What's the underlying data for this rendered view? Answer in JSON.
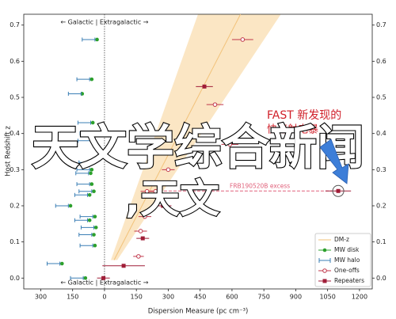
{
  "chart_data": {
    "type": "scatter",
    "xlabel": "Dispersion Measure (pc cm⁻³)",
    "ylabel": "Host Redshift z",
    "region_top": "← Galactic | Extragalactic →",
    "region_bottom": "← Galactic | Extragalactic →",
    "xlim": [
      -380,
      1260
    ],
    "ylim": [
      -0.03,
      0.73
    ],
    "xticks": [
      {
        "value": -300,
        "label": "300"
      },
      {
        "value": -150,
        "label": "150"
      },
      0,
      150,
      300,
      450,
      600,
      750,
      900,
      1050,
      1200
    ],
    "yticks": [
      {
        "value": 0,
        "label": "0.0"
      },
      0.1,
      0.2,
      0.3,
      0.4,
      0.5,
      0.6,
      0.7
    ],
    "band": {
      "y": [
        0.05,
        0.73
      ],
      "x_lower": [
        30,
        440
      ],
      "x_upper": [
        60,
        830
      ],
      "color": "#fbe6c4"
    },
    "series": [
      {
        "name": "DM-z",
        "kind": "line",
        "color": "#f2c27a",
        "x": [
          45,
          640
        ],
        "values": [
          0.05,
          0.73
        ]
      },
      {
        "name": "MW disk",
        "kind": "dot",
        "color": "#2ca02c",
        "x": [
          -35,
          -60,
          -105,
          -55,
          -45,
          -55,
          -50,
          -60,
          -65,
          -60,
          -50,
          -70,
          -160,
          -45,
          -70,
          -40,
          -50,
          -45,
          -200,
          -90
        ],
        "values": [
          0.66,
          0.55,
          0.51,
          0.43,
          0.4,
          0.38,
          0.32,
          0.3,
          0.29,
          0.26,
          0.24,
          0.23,
          0.2,
          0.17,
          0.16,
          0.14,
          0.12,
          0.09,
          0.04,
          0.0
        ]
      },
      {
        "name": "MW halo",
        "kind": "bar",
        "color": "#3b7fb5",
        "x": [
          -75,
          -100,
          -140,
          -95,
          -85,
          -95,
          -90,
          -100,
          -105,
          -100,
          -90,
          -110,
          -200,
          -85,
          -110,
          -80,
          -90,
          -85,
          -240,
          -130
        ],
        "values": [
          0.66,
          0.55,
          0.51,
          0.43,
          0.4,
          0.38,
          0.32,
          0.3,
          0.29,
          0.26,
          0.24,
          0.23,
          0.2,
          0.17,
          0.16,
          0.14,
          0.12,
          0.09,
          0.04,
          0.0
        ],
        "xerr": [
          30,
          30,
          30,
          30,
          30,
          30,
          30,
          30,
          30,
          30,
          30,
          30,
          30,
          30,
          30,
          30,
          30,
          30,
          30,
          30
        ]
      },
      {
        "name": "One-offs",
        "kind": "circle",
        "color": "#c0364a",
        "x": [
          650,
          520,
          590,
          300,
          240,
          200,
          190,
          170,
          160
        ],
        "values": [
          0.66,
          0.48,
          0.37,
          0.3,
          0.24,
          0.24,
          0.17,
          0.13,
          0.06
        ],
        "xerr": [
          50,
          40,
          40,
          30,
          30,
          30,
          30,
          30,
          25
        ]
      },
      {
        "name": "Repeaters",
        "kind": "square",
        "color": "#a01e38",
        "x": [
          470,
          1100,
          275,
          180,
          90,
          -5
        ],
        "values": [
          0.53,
          0.241,
          0.2,
          0.11,
          0.034,
          0.0
        ],
        "xerr": [
          40,
          60,
          40,
          30,
          100,
          30
        ]
      }
    ],
    "excess": {
      "label": "FRB190520B excess",
      "x": [
        190,
        1100
      ],
      "y": 0.241,
      "color": "#e0607a"
    },
    "overlay": {
      "headline": "天文学综合新闻",
      "sub": ",天文",
      "fast_1": "FAST 新发现的",
      "fast_2": "快速射电暴"
    }
  }
}
